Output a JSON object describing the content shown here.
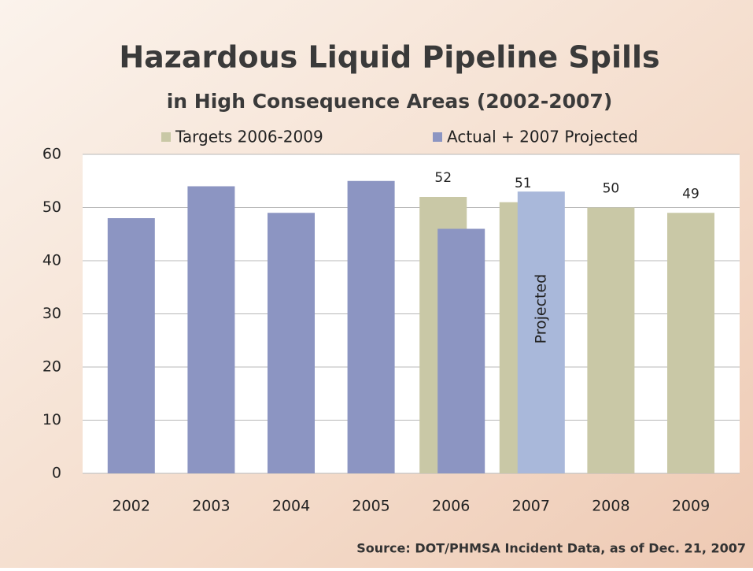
{
  "chart_data": {
    "type": "bar",
    "title": "Hazardous Liquid Pipeline Spills",
    "subtitle": "in High Consequence  Areas (2002-2007)",
    "source": "Source:  DOT/PHMSA Incident  Data, as of Dec. 21, 2007",
    "annotation": "Projected",
    "categories": [
      "2002",
      "2003",
      "2004",
      "2005",
      "2006",
      "2007",
      "2008",
      "2009"
    ],
    "series": [
      {
        "name": "Targets 2006-2009",
        "color": "#c9c8a6",
        "values": [
          null,
          null,
          null,
          null,
          52,
          51,
          50,
          49
        ]
      },
      {
        "name": "Actual + 2007 Projected",
        "color": "#8c95c2",
        "values": [
          48,
          54,
          49,
          55,
          46,
          53,
          null,
          null
        ],
        "colors": [
          "#8c95c2",
          "#8c95c2",
          "#8c95c2",
          "#8c95c2",
          "#8c95c2",
          "#a9b8da",
          null,
          null
        ]
      }
    ],
    "ylim": [
      0,
      60
    ],
    "yticks": [
      0,
      10,
      20,
      30,
      40,
      50,
      60
    ],
    "grid": true
  }
}
